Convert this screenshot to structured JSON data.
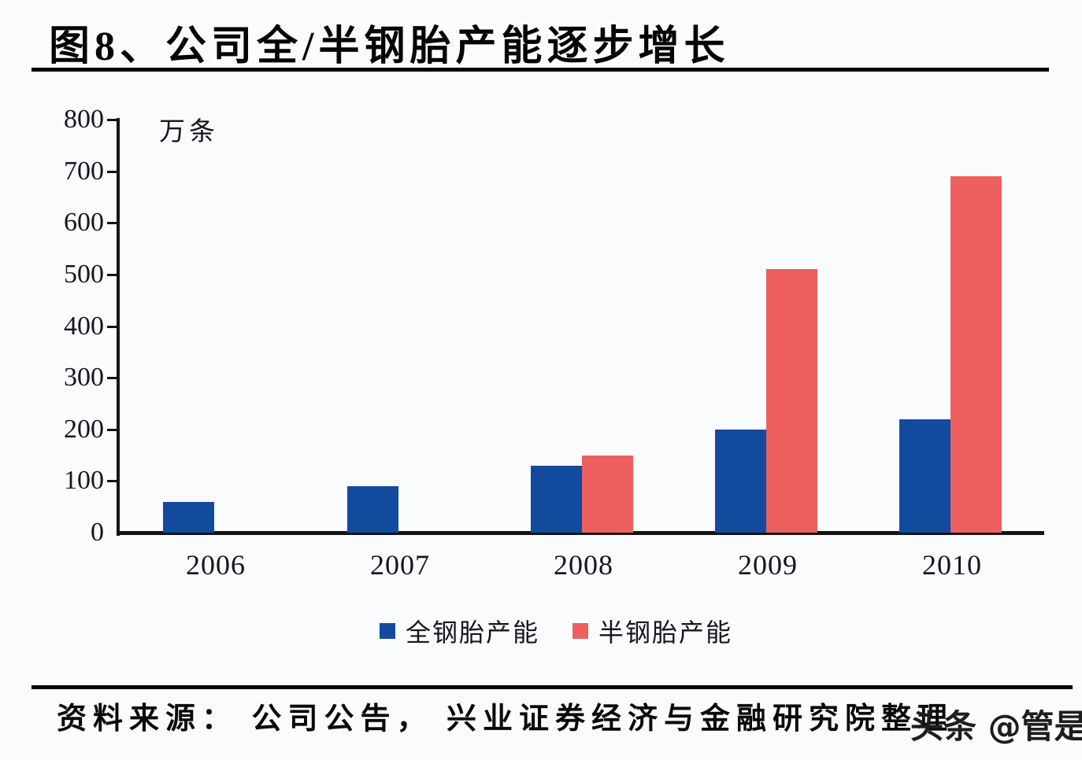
{
  "page": {
    "title": "图8、公司全/半钢胎产能逐步增长",
    "source_text": "资料来源： 公司公告， 兴业证券经济与金融研究院整理",
    "watermark": "头条 @管是"
  },
  "chart_data": {
    "type": "bar",
    "title": "图8、公司全/半钢胎产能逐步增长",
    "unit_label": "万条",
    "categories": [
      "2006",
      "2007",
      "2008",
      "2009",
      "2010"
    ],
    "series": [
      {
        "name": "全钢胎产能",
        "color": "#124a9e",
        "values": [
          60,
          90,
          130,
          200,
          220
        ]
      },
      {
        "name": "半钢胎产能",
        "color": "#ee5f5f",
        "values": [
          0,
          0,
          150,
          510,
          690
        ]
      }
    ],
    "ylabel": "万条",
    "ylim": [
      0,
      800
    ],
    "yticks": [
      0,
      100,
      200,
      300,
      400,
      500,
      600,
      700,
      800
    ],
    "grid": false,
    "legend_position": "bottom"
  },
  "colors": {
    "full_steel_blue": "#124a9e",
    "semi_steel_red": "#ee5f5f",
    "axis": "#141414",
    "text": "#111111",
    "background": "#fafbfd"
  }
}
